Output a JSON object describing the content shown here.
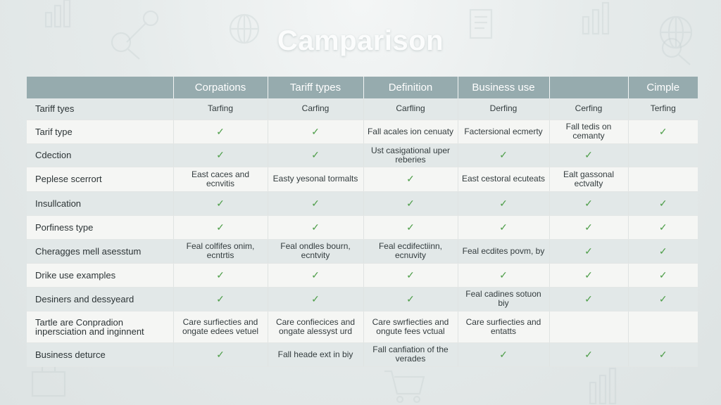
{
  "title": "Camparison",
  "columns": [
    "",
    "Corpations",
    "Tariff types",
    "Definition",
    "Business use",
    "",
    "Cimple"
  ],
  "rows": [
    {
      "cells": [
        "Tariff tyes",
        "Tarfing",
        "Carfing",
        "Carfling",
        "Derfing",
        "Cerfing",
        "Terfing"
      ]
    },
    {
      "cells": [
        "Tarif type",
        "✓",
        "✓",
        "Fall acales ion cenuaty",
        "Factersional ecmerty",
        "Fall tedis on cemanty",
        "✓"
      ]
    },
    {
      "cells": [
        "Cdection",
        "✓",
        "✓",
        "Ust casigational uper reberies",
        "✓",
        "✓",
        ""
      ]
    },
    {
      "cells": [
        "Peplese scerrort",
        "East caces and ecnvitis",
        "Easty yesonal tormalts",
        "✓",
        "East cestoral ecuteats",
        "Ealt gassonal ectvalty",
        ""
      ]
    },
    {
      "cells": [
        "Insullcation",
        "✓",
        "✓",
        "✓",
        "✓",
        "✓",
        "✓"
      ]
    },
    {
      "cells": [
        "Porfiness type",
        "✓",
        "✓",
        "✓",
        "✓",
        "✓",
        "✓"
      ]
    },
    {
      "cells": [
        "Cheragges mell asesstum",
        "Feal colfifes onim, ecntrtis",
        "Feal ondles bourn, ecntvity",
        "Feal ecdifectiinn, ecnuvity",
        "Feal ecdites povm, by",
        "✓",
        "✓"
      ]
    },
    {
      "cells": [
        "Drike use examples",
        "✓",
        "✓",
        "✓",
        "✓",
        "✓",
        "✓"
      ]
    },
    {
      "cells": [
        "Desiners and dessyeard",
        "✓",
        "✓",
        "✓",
        "Feal cadines sotuon biy",
        "✓",
        "✓"
      ]
    },
    {
      "cells": [
        "Tartle are Conpradion inpersciation and inginnent",
        "Care surfiecties and ongate edees vetuel",
        "Care confiecices and ongate alessyst urd",
        "Care swrfiecties and ongute fees vctual",
        "Care surfiecties and entatts",
        "",
        ""
      ]
    },
    {
      "cells": [
        "Business deturce",
        "✓",
        "Fall heade ext in biy",
        "Fall canfiation of the verades",
        "✓",
        "✓",
        "✓"
      ]
    }
  ]
}
